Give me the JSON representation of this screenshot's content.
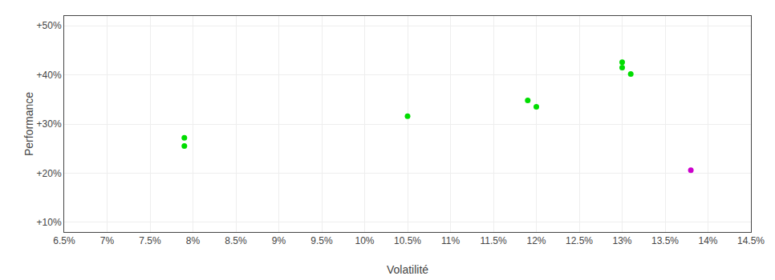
{
  "chart_data": {
    "type": "scatter",
    "xlabel": "Volatilité",
    "ylabel": "Performance",
    "xlim": [
      0.065,
      0.145
    ],
    "ylim": [
      0.08,
      0.52
    ],
    "xticks": [
      {
        "value": 0.065,
        "label": "6.5%"
      },
      {
        "value": 0.07,
        "label": "7%"
      },
      {
        "value": 0.075,
        "label": "7.5%"
      },
      {
        "value": 0.08,
        "label": "8%"
      },
      {
        "value": 0.085,
        "label": "8.5%"
      },
      {
        "value": 0.09,
        "label": "9%"
      },
      {
        "value": 0.095,
        "label": "9.5%"
      },
      {
        "value": 0.1,
        "label": "10%"
      },
      {
        "value": 0.105,
        "label": "10.5%"
      },
      {
        "value": 0.11,
        "label": "11%"
      },
      {
        "value": 0.115,
        "label": "11.5%"
      },
      {
        "value": 0.12,
        "label": "12%"
      },
      {
        "value": 0.125,
        "label": "12.5%"
      },
      {
        "value": 0.13,
        "label": "13%"
      },
      {
        "value": 0.135,
        "label": "13.5%"
      },
      {
        "value": 0.14,
        "label": "14%"
      },
      {
        "value": 0.145,
        "label": "14.5%"
      }
    ],
    "yticks": [
      {
        "value": 0.1,
        "label": "+10%"
      },
      {
        "value": 0.2,
        "label": "+20%"
      },
      {
        "value": 0.3,
        "label": "+30%"
      },
      {
        "value": 0.4,
        "label": "+40%"
      },
      {
        "value": 0.5,
        "label": "+50%"
      }
    ],
    "grid": true,
    "series": [
      {
        "color": "#00dd00",
        "x": [
          0.079,
          0.079,
          0.105,
          0.119,
          0.12,
          0.13,
          0.13,
          0.131
        ],
        "values": [
          0.272,
          0.255,
          0.316,
          0.348,
          0.335,
          0.426,
          0.415,
          0.402
        ]
      },
      {
        "color": "#cc00cc",
        "x": [
          0.138
        ],
        "values": [
          0.206
        ]
      }
    ]
  }
}
